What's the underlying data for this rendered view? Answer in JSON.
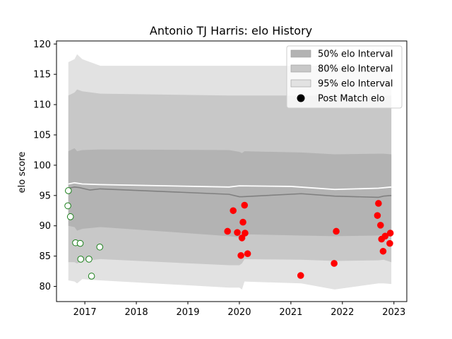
{
  "chart_data": {
    "type": "line",
    "title": "Antonio TJ Harris: elo History",
    "xlabel": "",
    "ylabel": "elo score",
    "xlim": [
      2016.45,
      2023.25
    ],
    "ylim": [
      77.5,
      120.5
    ],
    "x_ticks": [
      2017,
      2018,
      2019,
      2020,
      2021,
      2022,
      2023
    ],
    "x_tick_labels": [
      "2017",
      "2018",
      "2019",
      "2020",
      "2021",
      "2022",
      "2023"
    ],
    "y_ticks": [
      80,
      85,
      90,
      95,
      100,
      105,
      110,
      115,
      120
    ],
    "y_tick_labels": [
      "80",
      "85",
      "90",
      "95",
      "100",
      "105",
      "110",
      "115",
      "120"
    ],
    "grid": false,
    "legend_placement": "top-right",
    "legend": [
      {
        "label": "50% elo Interval",
        "kind": "patch",
        "color": "#b3b3b3"
      },
      {
        "label": "80% elo Interval",
        "kind": "patch",
        "color": "#c8c8c8"
      },
      {
        "label": "95% elo Interval",
        "kind": "patch",
        "color": "#e2e2e2"
      },
      {
        "label": "Post Match elo",
        "kind": "marker",
        "color": "#000000"
      }
    ],
    "bands": {
      "x": [
        2016.68,
        2016.8,
        2016.85,
        2016.95,
        2017.3,
        2019.8,
        2020.0,
        2020.05,
        2020.1,
        2021.2,
        2021.85,
        2022.7,
        2022.8,
        2022.95
      ],
      "p95_upper": [
        117.0,
        117.5,
        118.3,
        117.5,
        116.4,
        116.4,
        116.4,
        116.4,
        116.4,
        116.4,
        116.4,
        116.4,
        116.4,
        116.4
      ],
      "p95_lower": [
        81.0,
        80.8,
        80.5,
        81.2,
        81.0,
        79.8,
        79.8,
        79.5,
        80.8,
        80.5,
        79.5,
        80.5,
        80.5,
        80.4
      ],
      "p80_upper": [
        111.5,
        112.0,
        112.5,
        112.2,
        111.8,
        111.5,
        111.5,
        111.5,
        111.5,
        111.5,
        111.5,
        111.5,
        111.5,
        111.5
      ],
      "p80_lower": [
        84.0,
        84.0,
        83.8,
        84.2,
        84.5,
        83.5,
        83.5,
        83.8,
        84.5,
        84.4,
        84.2,
        84.3,
        84.4,
        84.0
      ],
      "p50_upper": [
        102.3,
        102.8,
        102.3,
        102.5,
        102.6,
        102.5,
        102.2,
        102.0,
        102.3,
        102.1,
        101.8,
        101.9,
        101.9,
        101.8
      ],
      "p50_lower": [
        90.0,
        89.8,
        89.2,
        89.5,
        89.8,
        88.3,
        88.1,
        88.2,
        88.6,
        88.4,
        88.3,
        88.4,
        88.5,
        88.2
      ]
    },
    "series": [
      {
        "role": "mean_line",
        "color": "#ffffff",
        "x": [
          2016.68,
          2016.8,
          2016.95,
          2017.3,
          2019.8,
          2020.0,
          2021.0,
          2021.85,
          2022.7,
          2022.95
        ],
        "y": [
          96.9,
          97.1,
          96.9,
          96.8,
          96.4,
          96.6,
          96.5,
          96.0,
          96.2,
          96.4
        ]
      },
      {
        "role": "median_line",
        "color": "#808080",
        "x": [
          2016.68,
          2016.8,
          2016.9,
          2017.1,
          2017.3,
          2019.8,
          2020.0,
          2020.05,
          2021.2,
          2021.85,
          2022.7,
          2022.8,
          2022.95
        ],
        "y": [
          96.2,
          96.4,
          96.3,
          95.9,
          96.1,
          95.2,
          94.8,
          94.8,
          95.3,
          94.9,
          94.7,
          94.9,
          95.0
        ]
      },
      {
        "name": "Post Match elo",
        "role": "points_2017",
        "marker_fill": "#ffffff",
        "marker_edge": "#1a7f1a",
        "x": [
          2016.67,
          2016.68,
          2016.72,
          2016.82,
          2016.91,
          2016.92,
          2017.08,
          2017.13,
          2017.29
        ],
        "y": [
          93.3,
          95.8,
          91.5,
          87.2,
          87.1,
          84.5,
          84.5,
          81.7,
          86.5
        ]
      },
      {
        "name": "Post Match elo",
        "role": "points_recent",
        "marker_fill": "#ff0000",
        "marker_edge": "#ff0000",
        "x": [
          2019.77,
          2019.88,
          2019.96,
          2020.03,
          2020.05,
          2020.07,
          2020.1,
          2020.11,
          2020.16,
          2021.19,
          2021.84,
          2021.88,
          2022.68,
          2022.7,
          2022.74,
          2022.76,
          2022.79,
          2022.83,
          2022.92,
          2022.93
        ],
        "y": [
          89.1,
          92.5,
          88.9,
          85.1,
          88.0,
          90.6,
          93.4,
          88.8,
          85.4,
          81.8,
          83.8,
          89.1,
          91.7,
          93.7,
          90.1,
          87.8,
          85.8,
          88.3,
          87.1,
          88.8
        ]
      }
    ]
  }
}
